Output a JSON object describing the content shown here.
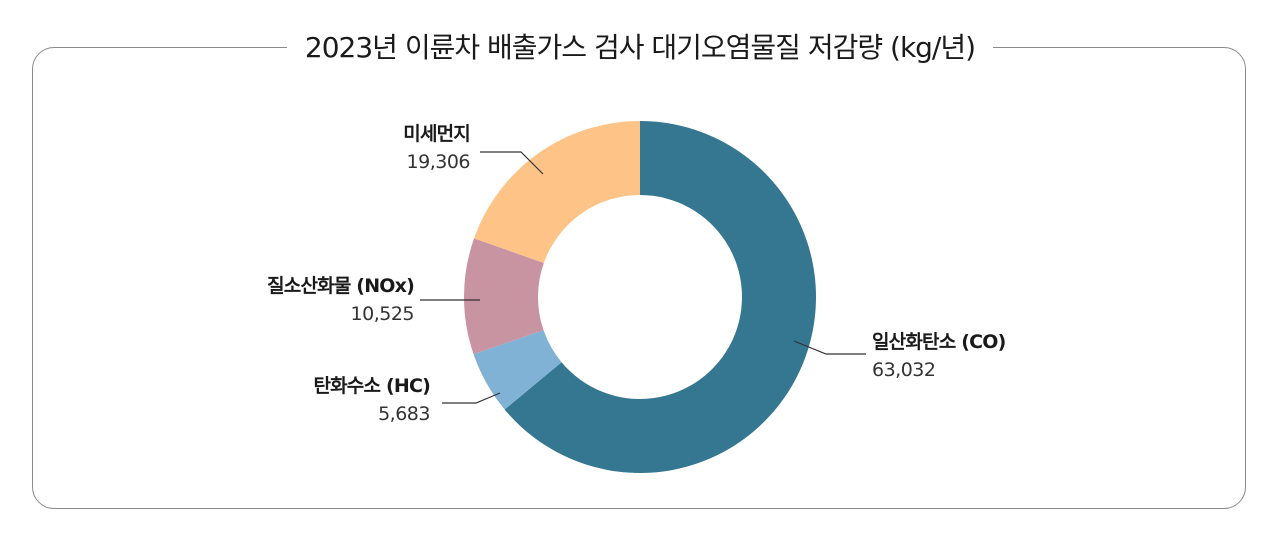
{
  "chart_data": {
    "type": "pie",
    "title": "2023년 이륜차 배출가스 검사 대기오염물질 저감량 (kg/년)",
    "donut": true,
    "slices": [
      {
        "name": "일산화탄소 (CO)",
        "value": 63032,
        "value_label": "63,032",
        "color": "#357691"
      },
      {
        "name": "탄화수소 (HC)",
        "value": 5683,
        "value_label": "5,683",
        "color": "#7fb2d5"
      },
      {
        "name": "질소산화물 (NOx)",
        "value": 10525,
        "value_label": "10,525",
        "color": "#c994a2"
      },
      {
        "name": "미세먼지",
        "value": 19306,
        "value_label": "19,306",
        "color": "#fdc387"
      }
    ]
  }
}
